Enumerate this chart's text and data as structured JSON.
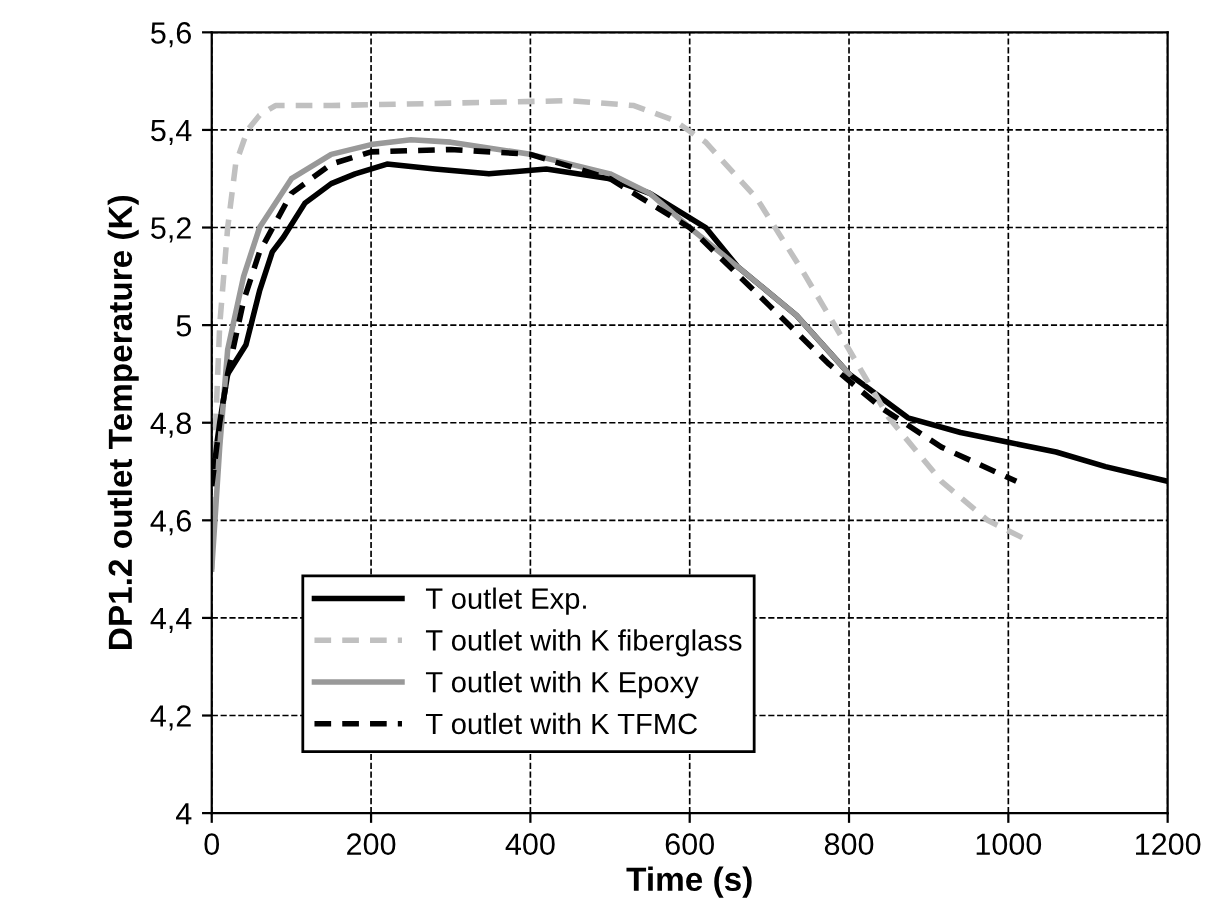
{
  "chart_data": {
    "type": "line",
    "xlabel": "Time (s)",
    "ylabel": "DP1.2 outlet Temperature (K)",
    "xlim": [
      0,
      1200
    ],
    "xticks": [
      0,
      200,
      400,
      600,
      800,
      1000,
      1200
    ],
    "ylim": [
      4,
      5.6
    ],
    "yticks": [
      4,
      {
        "value": 4.2,
        "label": "4,2"
      },
      {
        "value": 4.4,
        "label": "4,4"
      },
      {
        "value": 4.6,
        "label": "4,6"
      },
      {
        "value": 4.8,
        "label": "4,8"
      },
      5,
      {
        "value": 5.2,
        "label": "5,2"
      },
      {
        "value": 5.4,
        "label": "5,4"
      },
      {
        "value": 5.6,
        "label": "5,6"
      }
    ],
    "grid": true,
    "legend": "bottom left",
    "marker": "none",
    "series": [
      {
        "name": "T outlet Exp.",
        "color": "#000000",
        "line_style": "solid",
        "x": [
          0,
          10,
          20,
          43,
          60,
          76,
          90,
          117,
          150,
          180,
          220,
          280,
          348,
          420,
          500,
          550,
          620,
          660,
          734,
          800,
          874,
          940,
          1000,
          1060,
          1122,
          1200
        ],
        "values": [
          4.68,
          4.8,
          4.9,
          4.96,
          5.07,
          5.15,
          5.18,
          5.25,
          5.29,
          5.31,
          5.33,
          5.32,
          5.31,
          5.32,
          5.3,
          5.27,
          5.2,
          5.12,
          5.02,
          4.9,
          4.81,
          4.78,
          4.76,
          4.74,
          4.71,
          4.68
        ]
      },
      {
        "name": "T outlet with K fiberglass",
        "color": "#c0c0c0",
        "line_style": "dashed",
        "x": [
          0,
          5,
          10,
          20,
          30,
          45,
          60,
          80,
          150,
          300,
          450,
          530,
          580,
          620,
          684,
          742,
          800,
          850,
          916,
          974,
          1023
        ],
        "values": [
          4.5,
          4.8,
          5.0,
          5.2,
          5.33,
          5.4,
          5.43,
          5.45,
          5.45,
          5.455,
          5.46,
          5.45,
          5.42,
          5.375,
          5.26,
          5.11,
          4.95,
          4.81,
          4.68,
          4.6,
          4.56
        ]
      },
      {
        "name": "T outlet with K Epoxy",
        "color": "#999999",
        "line_style": "solid",
        "x": [
          0,
          10,
          20,
          40,
          60,
          100,
          150,
          200,
          250,
          300,
          400,
          500,
          550,
          600,
          660,
          734,
          800
        ],
        "values": [
          4.5,
          4.75,
          4.95,
          5.1,
          5.2,
          5.3,
          5.35,
          5.37,
          5.38,
          5.375,
          5.35,
          5.31,
          5.27,
          5.2,
          5.12,
          5.02,
          4.9
        ]
      },
      {
        "name": "T outlet with K TFMC",
        "color": "#000000",
        "line_style": "dashed",
        "x": [
          0,
          10,
          20,
          40,
          60,
          100,
          150,
          200,
          300,
          400,
          500,
          600,
          700,
          775,
          841,
          916,
          1010
        ],
        "values": [
          4.67,
          4.8,
          4.9,
          5.05,
          5.15,
          5.27,
          5.33,
          5.355,
          5.36,
          5.35,
          5.3,
          5.2,
          5.04,
          4.92,
          4.83,
          4.75,
          4.68
        ]
      }
    ]
  }
}
